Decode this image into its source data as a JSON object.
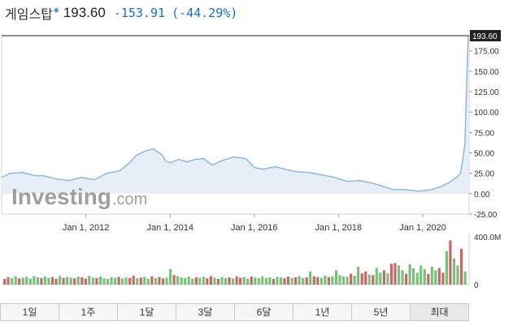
{
  "header": {
    "name": "게임스탑",
    "price": "193.60",
    "change": "-153.91",
    "change_pct": "(-44.29%)",
    "marker_icon": "diamond-icon",
    "change_color": "#1a6fc9"
  },
  "watermark": {
    "brand": "Investing",
    "suffix": ".com"
  },
  "periods": [
    "1일",
    "1주",
    "1달",
    "3달",
    "6달",
    "1년",
    "5년",
    "최대"
  ],
  "chart_data": {
    "type": "area",
    "price_axis": {
      "ticks": [
        "175.00",
        "150.00",
        "125.00",
        "100.00",
        "75.00",
        "50.00",
        "25.00",
        "0.00",
        "-25.00"
      ],
      "range": [
        -25,
        193.6
      ],
      "current_label": "193.60"
    },
    "x_ticks": [
      "Jan 1, 2012",
      "Jan 1, 2014",
      "Jan 1, 2016",
      "Jan 1, 2018",
      "Jan 1, 2020"
    ],
    "x_range": [
      2010.0,
      2021.1
    ],
    "series": [
      {
        "x": [
          2010.0,
          2010.2,
          2010.5,
          2010.8,
          2011.0,
          2011.3,
          2011.6,
          2011.9,
          2012.2,
          2012.5,
          2012.8,
          2013.0,
          2013.2,
          2013.4,
          2013.6,
          2013.8,
          2013.9,
          2014.0,
          2014.2,
          2014.4,
          2014.6,
          2014.8,
          2015.0,
          2015.2,
          2015.5,
          2015.8,
          2016.0,
          2016.2,
          2016.5,
          2016.8,
          2017.0,
          2017.3,
          2017.6,
          2017.9,
          2018.2,
          2018.5,
          2018.8,
          2019.0,
          2019.3,
          2019.6,
          2019.9,
          2020.2,
          2020.4,
          2020.6,
          2020.8,
          2020.9,
          2021.0,
          2021.05,
          2021.08
        ],
        "y": [
          20,
          25,
          26,
          22,
          22,
          18,
          16,
          20,
          17,
          25,
          28,
          36,
          47,
          52,
          55,
          48,
          40,
          38,
          42,
          39,
          42,
          43,
          35,
          40,
          45,
          43,
          32,
          30,
          33,
          29,
          27,
          26,
          23,
          20,
          15,
          16,
          13,
          10,
          5,
          5,
          3,
          5,
          8,
          13,
          20,
          25,
          60,
          150,
          193.6
        ]
      }
    ],
    "volume": {
      "axis_ticks": [
        "400.0M",
        "0"
      ],
      "range": [
        0,
        400
      ],
      "values": [
        48,
        62,
        55,
        70,
        52,
        58,
        66,
        50,
        72,
        60,
        54,
        68,
        57,
        63,
        49,
        71,
        56,
        64,
        59,
        53,
        67,
        61,
        50,
        73,
        58,
        55,
        69,
        52,
        47,
        62,
        57,
        65,
        51,
        60,
        56,
        74,
        53,
        59,
        66,
        48,
        70,
        55,
        63,
        52,
        58,
        130,
        80,
        72,
        60,
        55,
        68,
        50,
        62,
        57,
        66,
        53,
        71,
        59,
        48,
        64,
        55,
        61,
        52,
        69,
        57,
        63,
        50,
        67,
        58,
        54,
        70,
        56,
        62,
        49,
        65,
        60,
        53,
        68,
        57,
        61,
        72,
        55,
        60,
        110,
        70,
        64,
        58,
        75,
        62,
        68,
        120,
        80,
        70,
        65,
        90,
        75,
        150,
        95,
        110,
        85,
        80,
        140,
        100,
        120,
        95,
        175,
        180,
        160,
        120,
        90,
        170,
        135,
        100,
        160,
        130,
        90,
        150,
        120,
        140,
        100,
        280,
        370,
        220,
        160,
        300,
        110
      ]
    }
  }
}
